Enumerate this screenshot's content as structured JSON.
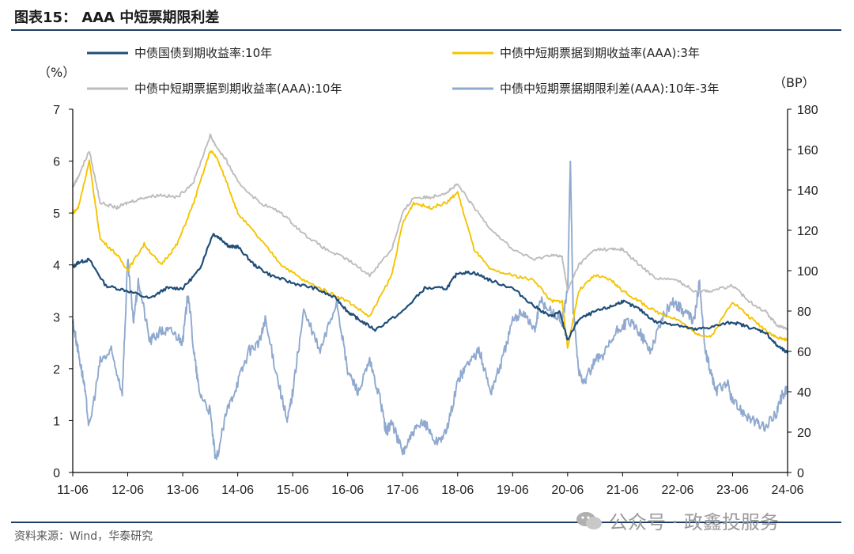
{
  "header": {
    "title": "图表15：  AAA 中短票期限利差"
  },
  "footer": {
    "source": "资料来源：Wind，华泰研究",
    "watermark": "公众号 · 政鑫投服务"
  },
  "colors": {
    "navy": "#1f4e79",
    "gold": "#f5c400",
    "gray": "#bdbdbd",
    "lightblue": "#8fa9cf",
    "axis": "#000000",
    "rule": "#1f3e66"
  },
  "chart_data": {
    "type": "line",
    "left_unit": "（%）",
    "right_unit": "（BP）",
    "x_ticks": [
      "11-06",
      "12-06",
      "13-06",
      "14-06",
      "15-06",
      "16-06",
      "17-06",
      "18-06",
      "19-06",
      "20-06",
      "21-06",
      "22-06",
      "23-06",
      "24-06"
    ],
    "y_left": {
      "min": 0,
      "max": 7,
      "ticks": [
        "0",
        "1",
        "2",
        "3",
        "4",
        "5",
        "6",
        "7"
      ]
    },
    "y_right": {
      "min": 0,
      "max": 180,
      "ticks": [
        "0",
        "20",
        "40",
        "60",
        "80",
        "100",
        "120",
        "140",
        "160",
        "180"
      ]
    },
    "grid": false,
    "legend_position": "top",
    "series": [
      {
        "name": "中债国债到期收益率:10年",
        "axis": "left",
        "color": "#1f4e79",
        "x": [
          0,
          0.1,
          0.3,
          0.6,
          1.0,
          1.4,
          1.7,
          2.0,
          2.3,
          2.55,
          2.7,
          2.85,
          3.0,
          3.3,
          3.6,
          4.0,
          4.4,
          4.8,
          5.0,
          5.2,
          5.5,
          6.0,
          6.4,
          6.8,
          7.0,
          7.3,
          7.6,
          8.0,
          8.4,
          8.7,
          8.85,
          9.0,
          9.2,
          9.5,
          9.8,
          10.0,
          10.3,
          10.6,
          11.0,
          11.3,
          11.6,
          12.0,
          12.3,
          12.6,
          12.8,
          13.0
        ],
        "y": [
          3.95,
          4.05,
          4.1,
          3.6,
          3.5,
          3.35,
          3.55,
          3.55,
          3.9,
          4.6,
          4.5,
          4.35,
          4.35,
          4.0,
          3.8,
          3.65,
          3.55,
          3.35,
          3.1,
          2.95,
          2.75,
          3.1,
          3.55,
          3.55,
          3.85,
          3.85,
          3.7,
          3.55,
          3.2,
          3.0,
          3.1,
          2.55,
          2.95,
          3.1,
          3.2,
          3.3,
          3.15,
          2.9,
          2.85,
          2.75,
          2.8,
          2.9,
          2.8,
          2.7,
          2.45,
          2.3
        ]
      },
      {
        "name": "中债中短期票据到期收益率(AAA):3年",
        "axis": "left",
        "color": "#f5c400",
        "x": [
          0,
          0.1,
          0.3,
          0.5,
          0.8,
          1.0,
          1.3,
          1.6,
          1.9,
          2.2,
          2.5,
          2.6,
          2.8,
          3.0,
          3.4,
          3.8,
          4.2,
          4.6,
          5.0,
          5.4,
          5.8,
          6.0,
          6.2,
          6.5,
          6.8,
          7.0,
          7.3,
          7.6,
          8.0,
          8.4,
          8.7,
          8.9,
          9.0,
          9.2,
          9.5,
          9.8,
          10.0,
          10.3,
          10.6,
          11.0,
          11.3,
          11.6,
          12.0,
          12.3,
          12.6,
          12.8,
          13.0
        ],
        "y": [
          5.0,
          5.1,
          6.0,
          4.5,
          4.2,
          3.9,
          4.4,
          4.0,
          4.4,
          5.2,
          6.2,
          6.1,
          5.6,
          5.0,
          4.5,
          4.0,
          3.7,
          3.5,
          3.3,
          3.0,
          3.8,
          4.8,
          5.2,
          5.1,
          5.2,
          5.4,
          4.3,
          3.9,
          3.8,
          3.7,
          3.3,
          3.3,
          2.4,
          3.5,
          3.8,
          3.7,
          3.5,
          3.3,
          3.1,
          2.95,
          2.7,
          2.6,
          3.3,
          3.0,
          2.75,
          2.6,
          2.55
        ]
      },
      {
        "name": "中债中短期票据到期收益率(AAA):10年",
        "axis": "left",
        "color": "#bdbdbd",
        "x": [
          0,
          0.1,
          0.3,
          0.5,
          0.8,
          1.0,
          1.3,
          1.6,
          1.9,
          2.2,
          2.5,
          2.6,
          2.8,
          3.0,
          3.4,
          3.8,
          4.2,
          4.6,
          5.0,
          5.4,
          5.8,
          6.0,
          6.2,
          6.5,
          6.8,
          7.0,
          7.3,
          7.6,
          8.0,
          8.4,
          8.7,
          8.9,
          9.0,
          9.2,
          9.5,
          9.8,
          10.0,
          10.3,
          10.6,
          11.0,
          11.3,
          11.6,
          12.0,
          12.3,
          12.6,
          12.8,
          13.0
        ],
        "y": [
          5.5,
          5.7,
          6.2,
          5.2,
          5.1,
          5.2,
          5.3,
          5.35,
          5.3,
          5.6,
          6.5,
          6.3,
          6.0,
          5.6,
          5.2,
          5.0,
          4.6,
          4.3,
          4.1,
          3.8,
          4.3,
          5.0,
          5.3,
          5.3,
          5.4,
          5.55,
          5.1,
          4.7,
          4.3,
          4.1,
          4.2,
          4.15,
          3.5,
          4.0,
          4.3,
          4.3,
          4.3,
          4.0,
          3.75,
          3.7,
          3.5,
          3.5,
          3.6,
          3.3,
          3.1,
          2.85,
          2.75
        ]
      },
      {
        "name": "中债中短期票据期限利差(AAA):10年-3年",
        "axis": "right",
        "color": "#8fa9cf",
        "x": [
          0,
          0.1,
          0.2,
          0.3,
          0.5,
          0.7,
          0.9,
          1.0,
          1.1,
          1.2,
          1.4,
          1.6,
          1.8,
          2.0,
          2.1,
          2.2,
          2.3,
          2.5,
          2.6,
          2.8,
          3.0,
          3.2,
          3.4,
          3.5,
          3.7,
          3.9,
          4.0,
          4.2,
          4.5,
          4.8,
          5.0,
          5.2,
          5.4,
          5.6,
          5.7,
          5.8,
          6.0,
          6.2,
          6.4,
          6.6,
          6.8,
          7.0,
          7.2,
          7.4,
          7.6,
          7.8,
          8.0,
          8.2,
          8.4,
          8.5,
          8.7,
          8.9,
          9.0,
          9.05,
          9.1,
          9.2,
          9.3,
          9.5,
          9.7,
          9.9,
          10.1,
          10.3,
          10.5,
          10.7,
          10.9,
          11.1,
          11.3,
          11.4,
          11.5,
          11.6,
          11.7,
          11.9,
          12.0,
          12.2,
          12.4,
          12.6,
          12.8,
          12.9,
          13.0
        ],
        "y": [
          75,
          60,
          45,
          22,
          55,
          60,
          40,
          105,
          75,
          95,
          65,
          70,
          70,
          65,
          90,
          60,
          40,
          30,
          5,
          30,
          45,
          60,
          65,
          75,
          50,
          25,
          40,
          80,
          60,
          85,
          50,
          40,
          55,
          35,
          20,
          25,
          10,
          20,
          25,
          15,
          20,
          45,
          55,
          60,
          40,
          55,
          75,
          80,
          70,
          85,
          80,
          75,
          90,
          155,
          80,
          50,
          45,
          55,
          60,
          70,
          75,
          70,
          60,
          75,
          85,
          80,
          75,
          95,
          60,
          50,
          40,
          45,
          35,
          30,
          25,
          22,
          30,
          38,
          42
        ]
      }
    ]
  }
}
